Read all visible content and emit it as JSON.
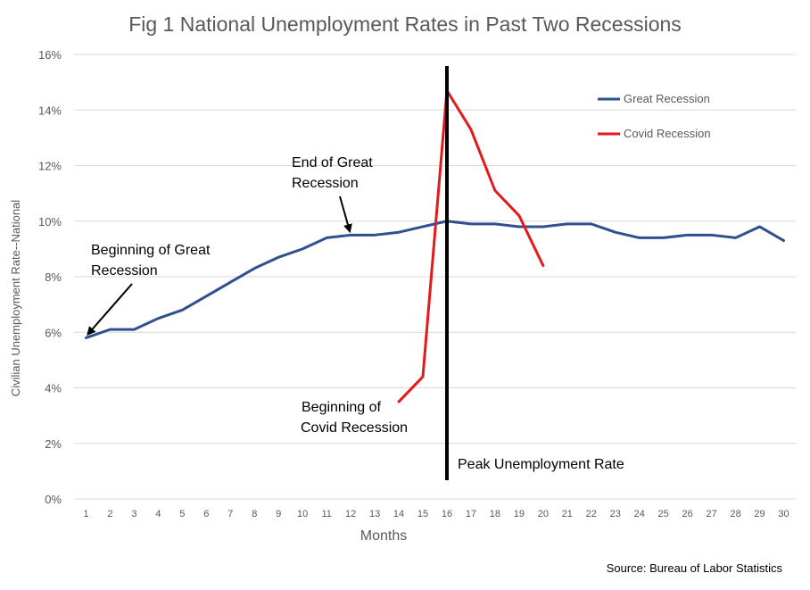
{
  "chart_data": {
    "type": "line",
    "title": "Fig 1 National Unemployment Rates in Past Two Recessions",
    "xlabel": "Months",
    "ylabel": "Civilian Unemployment Rate--National",
    "source": "Source: Bureau of Labor Statistics",
    "x": [
      1,
      2,
      3,
      4,
      5,
      6,
      7,
      8,
      9,
      10,
      11,
      12,
      13,
      14,
      15,
      16,
      17,
      18,
      19,
      20,
      21,
      22,
      23,
      24,
      25,
      26,
      27,
      28,
      29,
      30
    ],
    "xlim": [
      1,
      30
    ],
    "ylim": [
      0,
      16
    ],
    "yticks": [
      "0%",
      "2%",
      "4%",
      "6%",
      "8%",
      "10%",
      "12%",
      "14%",
      "16%"
    ],
    "grid": true,
    "legend_position": "top-right",
    "series": [
      {
        "name": "Great Recession",
        "color": "#2f4f8f",
        "x": [
          1,
          2,
          3,
          4,
          5,
          6,
          7,
          8,
          9,
          10,
          11,
          12,
          13,
          14,
          15,
          16,
          17,
          18,
          19,
          20,
          21,
          22,
          23,
          24,
          25,
          26,
          27,
          28,
          29,
          30
        ],
        "values": [
          5.8,
          6.1,
          6.1,
          6.5,
          6.8,
          7.3,
          7.8,
          8.3,
          8.7,
          9.0,
          9.4,
          9.5,
          9.5,
          9.6,
          9.8,
          10.0,
          9.9,
          9.9,
          9.8,
          9.8,
          9.9,
          9.9,
          9.6,
          9.4,
          9.4,
          9.5,
          9.5,
          9.4,
          9.8,
          9.3
        ]
      },
      {
        "name": "Covid Recession",
        "color": "#e31a1c",
        "x": [
          14,
          15,
          16,
          17,
          18,
          19,
          20
        ],
        "values": [
          3.5,
          4.4,
          14.7,
          13.3,
          11.1,
          10.2,
          8.4
        ]
      }
    ],
    "reference_line": {
      "x": 16,
      "label": "Peak Unemployment Rate",
      "color": "#000000"
    },
    "annotations": [
      {
        "name": "annotation-beginning-great-recession",
        "lines": [
          "Beginning of  Great",
          "Recession"
        ],
        "arrow_to": {
          "x": 1,
          "y": 5.8
        }
      },
      {
        "name": "annotation-end-great-recession",
        "lines": [
          "End of  Great",
          "Recession"
        ],
        "arrow_to": {
          "x": 12,
          "y": 9.5
        }
      },
      {
        "name": "annotation-beginning-covid-recession",
        "lines": [
          "Beginning of",
          "Covid Recession"
        ]
      }
    ]
  }
}
